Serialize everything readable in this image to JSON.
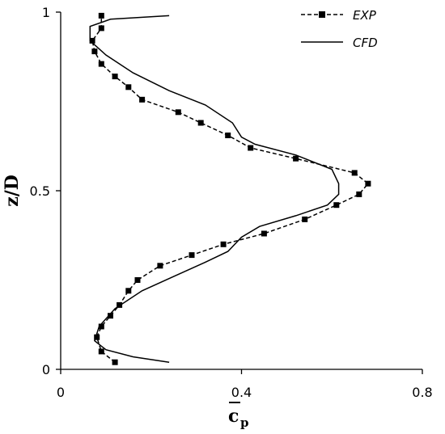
{
  "chart_data": {
    "type": "line",
    "title": "",
    "xlabel_main": "c",
    "xlabel_sub": "p",
    "ylabel": "z/D",
    "xlim": [
      0,
      0.8
    ],
    "ylim": [
      0,
      1
    ],
    "xticks": [
      {
        "value": 0,
        "label": "0"
      },
      {
        "value": 0.4,
        "label": "0.4"
      },
      {
        "value": 0.8,
        "label": "0.8"
      }
    ],
    "yticks": [
      {
        "value": 0,
        "label": "0"
      },
      {
        "value": 0.5,
        "label": "0.5"
      },
      {
        "value": 1,
        "label": "1"
      }
    ],
    "grid": false,
    "legend_position": "top-right",
    "series": [
      {
        "name": "EXP",
        "style": "dashed-with-square-markers",
        "x": [
          0.12,
          0.09,
          0.08,
          0.09,
          0.11,
          0.13,
          0.15,
          0.17,
          0.22,
          0.29,
          0.36,
          0.45,
          0.54,
          0.61,
          0.66,
          0.68,
          0.65,
          0.52,
          0.42,
          0.37,
          0.31,
          0.26,
          0.18,
          0.15,
          0.12,
          0.09,
          0.075,
          0.07,
          0.09,
          0.09
        ],
        "y": [
          0.02,
          0.05,
          0.09,
          0.12,
          0.15,
          0.18,
          0.22,
          0.25,
          0.29,
          0.32,
          0.35,
          0.38,
          0.42,
          0.46,
          0.49,
          0.52,
          0.55,
          0.59,
          0.62,
          0.655,
          0.69,
          0.72,
          0.755,
          0.79,
          0.82,
          0.855,
          0.89,
          0.92,
          0.955,
          0.99
        ]
      },
      {
        "name": "CFD",
        "style": "solid",
        "x": [
          0.24,
          0.16,
          0.1,
          0.075,
          0.085,
          0.12,
          0.18,
          0.25,
          0.32,
          0.37,
          0.4,
          0.44,
          0.52,
          0.59,
          0.615,
          0.615,
          0.6,
          0.52,
          0.43,
          0.4,
          0.38,
          0.32,
          0.24,
          0.16,
          0.1,
          0.065,
          0.065,
          0.11,
          0.24
        ],
        "y": [
          0.02,
          0.035,
          0.055,
          0.08,
          0.12,
          0.17,
          0.22,
          0.26,
          0.3,
          0.33,
          0.37,
          0.4,
          0.43,
          0.46,
          0.49,
          0.52,
          0.56,
          0.6,
          0.63,
          0.65,
          0.69,
          0.74,
          0.78,
          0.83,
          0.88,
          0.92,
          0.96,
          0.98,
          0.99
        ]
      }
    ]
  }
}
